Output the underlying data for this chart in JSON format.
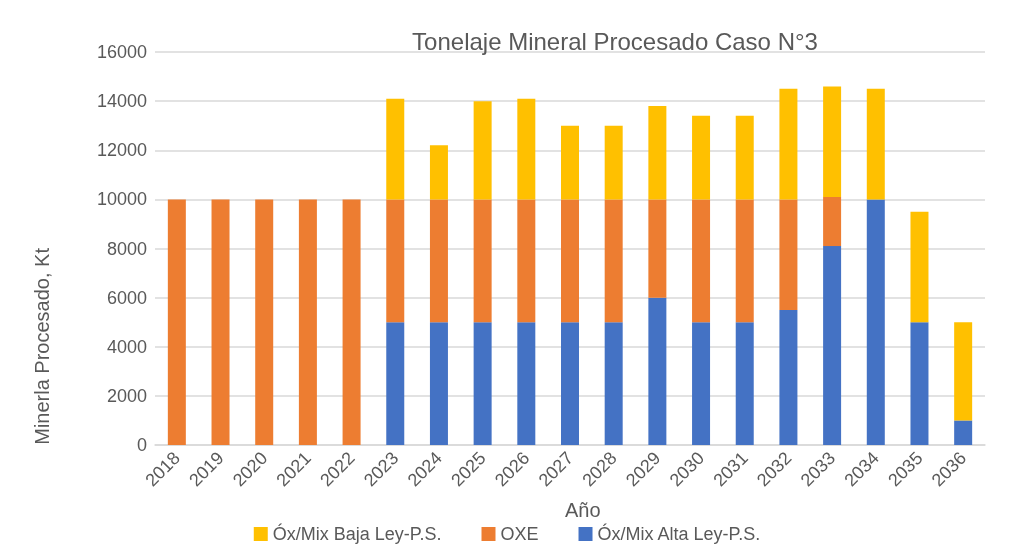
{
  "chart_data": {
    "type": "bar",
    "title": "Tonelaje Mineral Procesado Caso N°3",
    "xlabel": "Año",
    "ylabel": "Minerla Procesado, Kt",
    "categories": [
      "2018",
      "2019",
      "2020",
      "2021",
      "2022",
      "2023",
      "2024",
      "2025",
      "2026",
      "2027",
      "2028",
      "2029",
      "2030",
      "2031",
      "2032",
      "2033",
      "2034",
      "2035",
      "2036"
    ],
    "stacked": true,
    "series": [
      {
        "name": "Óx/Mix Alta Ley-P.S.",
        "color": "#4472c4",
        "values": [
          0,
          0,
          0,
          0,
          0,
          5000,
          5000,
          5000,
          5000,
          5000,
          5000,
          6000,
          5000,
          5000,
          5500,
          8100,
          10000,
          5000,
          1000
        ]
      },
      {
        "name": "OXE",
        "color": "#ed7d31",
        "values": [
          10000,
          10000,
          10000,
          10000,
          10000,
          5000,
          5000,
          5000,
          5000,
          5000,
          5000,
          4000,
          5000,
          5000,
          4500,
          2000,
          0,
          0,
          0
        ]
      },
      {
        "name": "Óx/Mix Baja Ley-P.S.",
        "color": "#ffc000",
        "values": [
          0,
          0,
          0,
          0,
          0,
          4100,
          2200,
          4000,
          4100,
          3000,
          3000,
          3800,
          3400,
          3400,
          4500,
          4500,
          4500,
          4500,
          4000
        ]
      }
    ],
    "ylim": [
      0,
      16000
    ],
    "yticks": [
      0,
      2000,
      4000,
      6000,
      8000,
      10000,
      12000,
      14000,
      16000
    ],
    "grid": "y",
    "legend": "bottom"
  }
}
